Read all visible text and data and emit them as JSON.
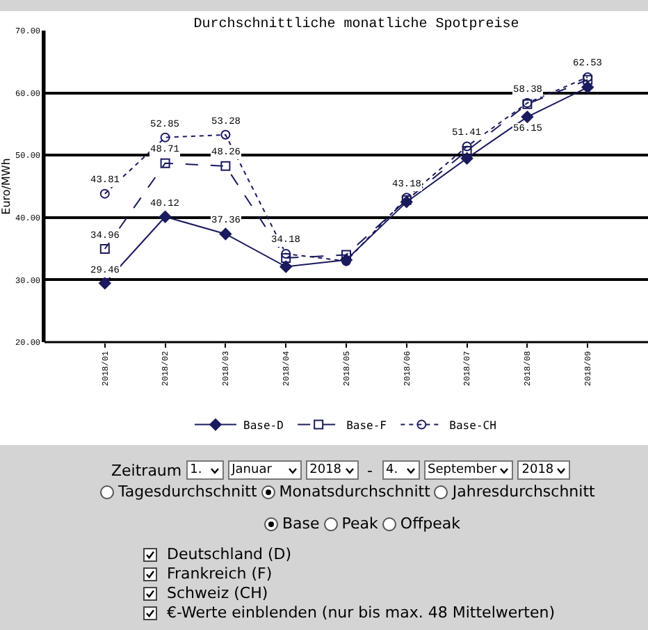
{
  "chart_data": {
    "type": "line",
    "title": "Durchschnittliche monatliche Spotpreise",
    "ylabel": "Euro/MWh",
    "categories": [
      "2018/01",
      "2018/02",
      "2018/03",
      "2018/04",
      "2018/05",
      "2018/06",
      "2018/07",
      "2018/08",
      "2018/09"
    ],
    "series": [
      {
        "name": "Base-D",
        "color": "#1a1a5e",
        "marker": "diamond",
        "line_style": "solid",
        "values": [
          29.46,
          40.12,
          37.36,
          32.1,
          33.2,
          42.5,
          49.5,
          56.15,
          60.9
        ],
        "value_labels": [
          "29.46",
          "40.12",
          "37.36",
          null,
          null,
          null,
          null,
          "56.15",
          null
        ]
      },
      {
        "name": "Base-F",
        "color": "#1a1a5e",
        "marker": "square",
        "line_style": "dashed",
        "values": [
          34.96,
          48.71,
          48.26,
          33.5,
          34.0,
          42.8,
          50.7,
          58.2,
          62.1
        ],
        "value_labels": [
          "34.96",
          "48.71",
          "48.26",
          null,
          null,
          null,
          null,
          null,
          null
        ]
      },
      {
        "name": "Base-CH",
        "color": "#1a1a5e",
        "marker": "circle",
        "line_style": "dotted",
        "values": [
          43.81,
          52.85,
          53.28,
          34.18,
          33.0,
          43.18,
          51.41,
          58.38,
          62.53
        ],
        "value_labels": [
          "43.81",
          "52.85",
          "53.28",
          "34.18",
          null,
          "43.18",
          "51.41",
          "58.38",
          "62.53"
        ]
      }
    ],
    "ylim": [
      20,
      70
    ],
    "yticks": [
      {
        "value": 20,
        "label": "20.00"
      },
      {
        "value": 30,
        "label": "30.00"
      },
      {
        "value": 40,
        "label": "40.00"
      },
      {
        "value": 50,
        "label": "50.00"
      },
      {
        "value": 60,
        "label": "60.00"
      },
      {
        "value": 70,
        "label": "70.00"
      }
    ],
    "grid": "y",
    "legend": "bottom",
    "annotations": [
      "Zeitraum",
      "1.",
      "Januar",
      "2018",
      "-",
      "4.",
      "September",
      "2018",
      "Tagesdurchschnitt",
      "Monatsdurchschnitt",
      "Jahresdurchschnitt",
      "Base",
      "Peak",
      "Offpeak",
      "Deutschland (D)",
      "Frankreich (F)",
      "Schweiz (CH)",
      "€-Werte einblenden (nur bis max. 48 Mittelwerten)"
    ]
  }
}
